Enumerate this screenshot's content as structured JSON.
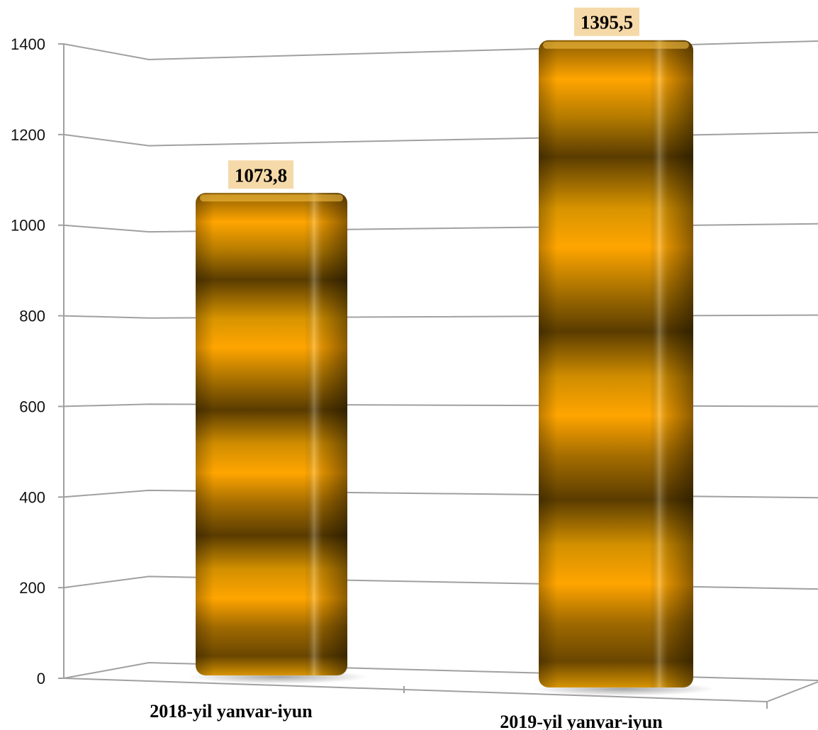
{
  "chart_data": {
    "type": "bar",
    "categories": [
      "2018-yil yanvar-iyun",
      "2019-yil yanvar-iyun"
    ],
    "values": [
      1073.8,
      1395.5
    ],
    "value_labels": [
      "1073,8",
      "1395,5"
    ],
    "yticks": [
      "0",
      "200",
      "400",
      "600",
      "800",
      "1000",
      "1200",
      "1400"
    ],
    "ylim": [
      0,
      1400
    ],
    "title": "",
    "xlabel": "",
    "ylabel": "",
    "grid": true,
    "legend": "none",
    "style": "3d-cylinder-bars",
    "colors": {
      "bar_light": "#FFA500",
      "bar_mid": "#C98A00",
      "bar_dark": "#5A3C00",
      "label_bg": "#F5D9A8",
      "grid": "#A0A0A0"
    }
  }
}
